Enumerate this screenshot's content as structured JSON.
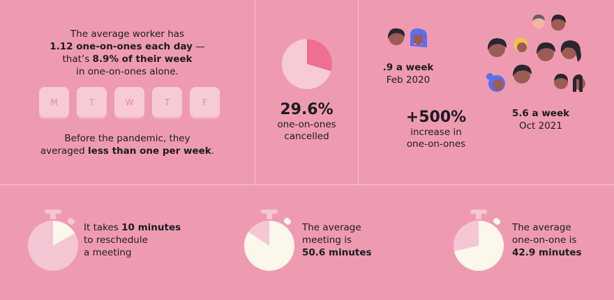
{
  "panel1": {
    "line1": "The average worker has",
    "line2_bold": "1.12 one-on-ones each day",
    "line2_rest": " —",
    "line3_pre": "that’s ",
    "line3_bold": "8.9% of their week",
    "line4": "in one-on-ones alone.",
    "days": [
      "M",
      "T",
      "W",
      "T",
      "F"
    ],
    "footer_line1": "Before the pandemic, they",
    "footer_pre": "averaged ",
    "footer_bold": "less than one per week",
    "footer_post": "."
  },
  "panel2": {
    "cancelled_value": "29.6%",
    "cancelled_label1": "one-on-ones",
    "cancelled_label2": "cancelled",
    "cancelled_fraction": 0.296
  },
  "panel3": {
    "before_value": ".9 a week",
    "before_date": "Feb 2020",
    "after_value": "5.6 a week",
    "after_date": "Oct 2021",
    "increase_value": "+500%",
    "increase_label1": "increase in",
    "increase_label2": "one-on-ones"
  },
  "timers": [
    {
      "pre": "It takes ",
      "bold": "10 minutes",
      "line2": "to reschedule",
      "line3": "a meeting",
      "fraction": 0.167
    },
    {
      "line1": "The average",
      "line2": "meeting is",
      "bold": "50.6 minutes",
      "fraction": 0.843
    },
    {
      "line1": "The average",
      "line2": "one-on-one is",
      "bold": "42.9 minutes",
      "fraction": 0.715
    }
  ],
  "colors": {
    "background": "#ee9bb1",
    "pie_light": "#f7cbd6",
    "pie_accent": "#ee6f92",
    "timer_cream": "#fbf7ea",
    "timer_light": "#f5c6d3",
    "avatar_skin": "#9c5b55",
    "avatar_hair": "#2a2530",
    "avatar_blue": "#5d6df0",
    "avatar_yellow": "#f1c24a"
  }
}
